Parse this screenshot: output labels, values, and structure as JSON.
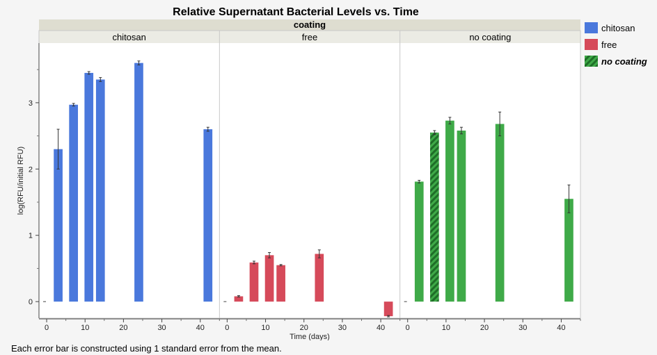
{
  "chart_data": {
    "type": "bar",
    "title": "Relative Supernatant Bacterial Levels vs. Time",
    "facet_header": "coating",
    "xlabel": "Time (days)",
    "ylabel": "log(RFU/initial RFU)",
    "xlim": [
      -2,
      45
    ],
    "ylim": [
      -0.25,
      3.9
    ],
    "xticks": [
      0,
      10,
      20,
      30,
      40
    ],
    "yticks": [
      0,
      1,
      2,
      3
    ],
    "legend_position": "right",
    "legend": [
      {
        "label": "chitosan",
        "color": "#4a78dc",
        "pattern": "solid",
        "bold_italic": false
      },
      {
        "label": "free",
        "color": "#d64a5a",
        "pattern": "solid",
        "bold_italic": false
      },
      {
        "label": "no coating",
        "color": "#3faa48",
        "pattern": "hatched",
        "bold_italic": true
      }
    ],
    "panels": [
      {
        "label": "chitosan",
        "color": "#4a78dc",
        "bars": [
          {
            "x": 3,
            "y": 2.3,
            "err": 0.3
          },
          {
            "x": 7,
            "y": 2.97,
            "err": 0.02
          },
          {
            "x": 11,
            "y": 3.45,
            "err": 0.02
          },
          {
            "x": 14,
            "y": 3.35,
            "err": 0.03
          },
          {
            "x": 24,
            "y": 3.6,
            "err": 0.03
          },
          {
            "x": 42,
            "y": 2.6,
            "err": 0.03
          }
        ]
      },
      {
        "label": "free",
        "color": "#d64a5a",
        "bars": [
          {
            "x": 3,
            "y": 0.08,
            "err": 0.01
          },
          {
            "x": 7,
            "y": 0.59,
            "err": 0.02
          },
          {
            "x": 11,
            "y": 0.7,
            "err": 0.04
          },
          {
            "x": 14,
            "y": 0.55,
            "err": 0.01
          },
          {
            "x": 24,
            "y": 0.72,
            "err": 0.06
          },
          {
            "x": 42,
            "y": -0.22,
            "err": 0.01
          }
        ]
      },
      {
        "label": "no coating",
        "color": "#3faa48",
        "bars": [
          {
            "x": 3,
            "y": 1.81,
            "err": 0.02
          },
          {
            "x": 7,
            "y": 2.55,
            "err": 0.03,
            "hatched": true
          },
          {
            "x": 11,
            "y": 2.73,
            "err": 0.05
          },
          {
            "x": 14,
            "y": 2.58,
            "err": 0.05
          },
          {
            "x": 24,
            "y": 2.68,
            "err": 0.18
          },
          {
            "x": 42,
            "y": 1.55,
            "err": 0.21
          }
        ]
      }
    ]
  },
  "footnote": "Each error bar is constructed using 1 standard error from the mean."
}
